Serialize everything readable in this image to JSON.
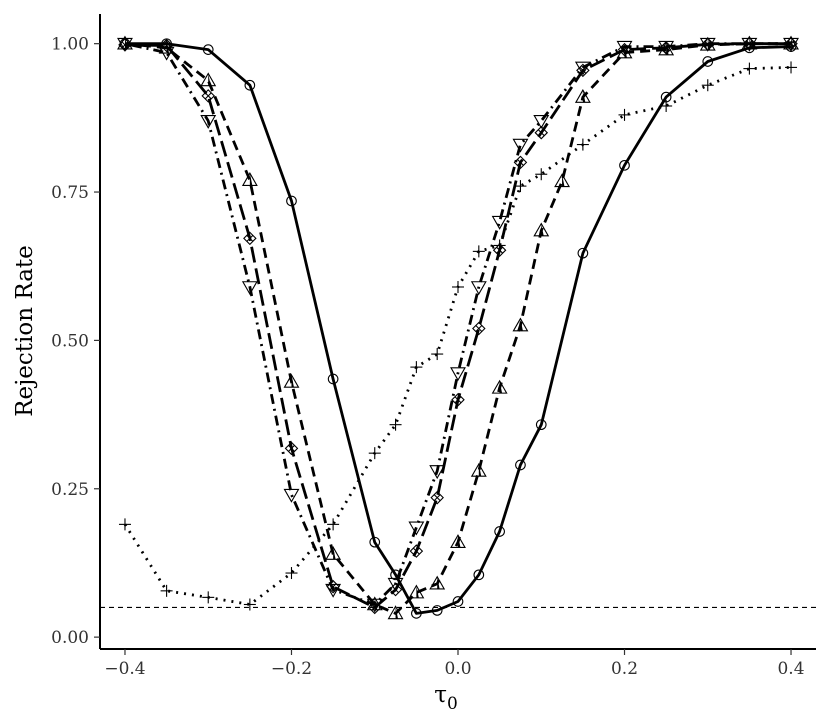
{
  "chart_data": {
    "type": "line",
    "xlabel": "τ",
    "xlabel_subscript": "0",
    "ylabel": "Rejection Rate",
    "xlim": [
      -0.43,
      0.43
    ],
    "ylim": [
      -0.02,
      1.05
    ],
    "x_ticks": [
      -0.4,
      -0.2,
      0.0,
      0.2,
      0.4
    ],
    "x_tick_labels": [
      "−0.4",
      "−0.2",
      "0.0",
      "0.2",
      "0.4"
    ],
    "y_ticks": [
      0.0,
      0.25,
      0.5,
      0.75,
      1.0
    ],
    "y_tick_labels": [
      "0.00",
      "0.25",
      "0.50",
      "0.75",
      "1.00"
    ],
    "reference_line": {
      "y": 0.05,
      "style": "dashed"
    },
    "grid": false,
    "legend": "none",
    "series": [
      {
        "marker": "circle",
        "line_style": "solid",
        "points": [
          [
            -0.4,
            1.0
          ],
          [
            -0.35,
            1.0
          ],
          [
            -0.3,
            0.99
          ],
          [
            -0.25,
            0.93
          ],
          [
            -0.2,
            0.735
          ],
          [
            -0.15,
            0.435
          ],
          [
            -0.1,
            0.16
          ],
          [
            -0.075,
            0.105
          ],
          [
            -0.05,
            0.04
          ],
          [
            -0.025,
            0.045
          ],
          [
            0.0,
            0.06
          ],
          [
            0.025,
            0.105
          ],
          [
            0.05,
            0.178
          ],
          [
            0.075,
            0.29
          ],
          [
            0.1,
            0.358
          ],
          [
            0.15,
            0.647
          ],
          [
            0.2,
            0.795
          ],
          [
            0.25,
            0.91
          ],
          [
            0.3,
            0.97
          ],
          [
            0.35,
            0.993
          ],
          [
            0.4,
            0.995
          ]
        ]
      },
      {
        "marker": "up-triangle-half",
        "line_style": "dashed",
        "points": [
          [
            -0.4,
            1.0
          ],
          [
            -0.35,
            0.993
          ],
          [
            -0.3,
            0.938
          ],
          [
            -0.25,
            0.77
          ],
          [
            -0.2,
            0.43
          ],
          [
            -0.15,
            0.14
          ],
          [
            -0.1,
            0.055
          ],
          [
            -0.075,
            0.04
          ],
          [
            -0.05,
            0.075
          ],
          [
            -0.025,
            0.09
          ],
          [
            0.0,
            0.16
          ],
          [
            0.025,
            0.28
          ],
          [
            0.05,
            0.42
          ],
          [
            0.075,
            0.525
          ],
          [
            0.1,
            0.685
          ],
          [
            0.125,
            0.768
          ],
          [
            0.15,
            0.91
          ],
          [
            0.2,
            0.985
          ],
          [
            0.25,
            0.99
          ],
          [
            0.3,
            0.998
          ],
          [
            0.35,
            1.0
          ],
          [
            0.4,
            1.0
          ]
        ]
      },
      {
        "marker": "diamond-cross",
        "line_style": "longdash",
        "points": [
          [
            -0.4,
            0.998
          ],
          [
            -0.35,
            0.997
          ],
          [
            -0.3,
            0.912
          ],
          [
            -0.25,
            0.672
          ],
          [
            -0.2,
            0.318
          ],
          [
            -0.15,
            0.085
          ],
          [
            -0.1,
            0.05
          ],
          [
            -0.075,
            0.08
          ],
          [
            -0.05,
            0.145
          ],
          [
            -0.025,
            0.235
          ],
          [
            0.0,
            0.4
          ],
          [
            0.025,
            0.52
          ],
          [
            0.05,
            0.652
          ],
          [
            0.075,
            0.8
          ],
          [
            0.1,
            0.85
          ],
          [
            0.15,
            0.955
          ],
          [
            0.2,
            0.99
          ],
          [
            0.25,
            0.993
          ],
          [
            0.3,
            0.999
          ],
          [
            0.35,
            1.0
          ],
          [
            0.4,
            1.0
          ]
        ]
      },
      {
        "marker": "down-triangle",
        "line_style": "dotdash",
        "points": [
          [
            -0.4,
            1.0
          ],
          [
            -0.35,
            0.985
          ],
          [
            -0.3,
            0.87
          ],
          [
            -0.25,
            0.59
          ],
          [
            -0.2,
            0.24
          ],
          [
            -0.15,
            0.08
          ],
          [
            -0.1,
            0.055
          ],
          [
            -0.075,
            0.09
          ],
          [
            -0.05,
            0.185
          ],
          [
            -0.025,
            0.28
          ],
          [
            0.0,
            0.445
          ],
          [
            0.025,
            0.59
          ],
          [
            0.05,
            0.7
          ],
          [
            0.075,
            0.83
          ],
          [
            0.1,
            0.87
          ],
          [
            0.15,
            0.96
          ],
          [
            0.2,
            0.995
          ],
          [
            0.25,
            0.995
          ],
          [
            0.3,
            1.0
          ],
          [
            0.35,
            1.0
          ],
          [
            0.4,
            1.0
          ]
        ]
      },
      {
        "marker": "plus",
        "line_style": "dotted",
        "points": [
          [
            -0.4,
            0.19
          ],
          [
            -0.35,
            0.078
          ],
          [
            -0.3,
            0.067
          ],
          [
            -0.25,
            0.055
          ],
          [
            -0.2,
            0.108
          ],
          [
            -0.15,
            0.19
          ],
          [
            -0.1,
            0.31
          ],
          [
            -0.075,
            0.358
          ],
          [
            -0.05,
            0.455
          ],
          [
            -0.025,
            0.477
          ],
          [
            0.0,
            0.59
          ],
          [
            0.025,
            0.65
          ],
          [
            0.05,
            0.66
          ],
          [
            0.075,
            0.76
          ],
          [
            0.1,
            0.78
          ],
          [
            0.15,
            0.83
          ],
          [
            0.2,
            0.88
          ],
          [
            0.25,
            0.895
          ],
          [
            0.3,
            0.93
          ],
          [
            0.35,
            0.958
          ],
          [
            0.4,
            0.96
          ]
        ]
      }
    ]
  }
}
